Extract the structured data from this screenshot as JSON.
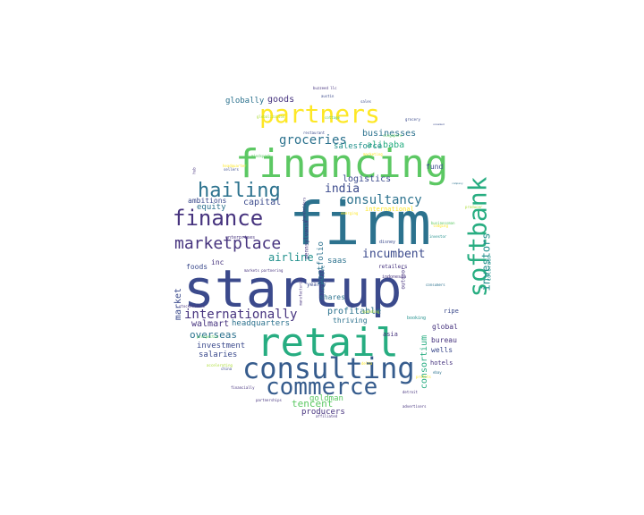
{
  "colors": {
    "navy": "#3b4a8c",
    "indigo": "#46337e",
    "blue": "#365c8d",
    "steel": "#2c728e",
    "teal": "#21908c",
    "green": "#27ad81",
    "lime": "#5cc863",
    "yellowgreen": "#aadc32",
    "yellow": "#fde725",
    "purple": "#440154"
  },
  "words": [
    {
      "text": "startup",
      "color": "navy"
    },
    {
      "text": "firm",
      "color": "steel"
    },
    {
      "text": "financing",
      "color": "lime"
    },
    {
      "text": "retail",
      "color": "green"
    },
    {
      "text": "partners",
      "color": "yellow"
    },
    {
      "text": "consulting",
      "color": "blue"
    },
    {
      "text": "commerce",
      "color": "blue"
    },
    {
      "text": "finance",
      "color": "indigo"
    },
    {
      "text": "softbank",
      "color": "green"
    },
    {
      "text": "hailing",
      "color": "steel"
    },
    {
      "text": "marketplace",
      "color": "indigo"
    },
    {
      "text": "internationally",
      "color": "indigo"
    },
    {
      "text": "groceries",
      "color": "steel"
    },
    {
      "text": "consultancy",
      "color": "steel"
    },
    {
      "text": "incumbent",
      "color": "navy"
    },
    {
      "text": "india",
      "color": "navy"
    },
    {
      "text": "airline",
      "color": "teal"
    },
    {
      "text": "investors",
      "color": "teal"
    },
    {
      "text": "overseas",
      "color": "steel"
    },
    {
      "text": "tencent",
      "color": "lime"
    },
    {
      "text": "businesses",
      "color": "steel"
    },
    {
      "text": "alibaba",
      "color": "green"
    },
    {
      "text": "logistics",
      "color": "navy"
    },
    {
      "text": "capital",
      "color": "navy"
    },
    {
      "text": "portfolio",
      "color": "steel"
    },
    {
      "text": "consortium",
      "color": "green"
    },
    {
      "text": "profitable",
      "color": "steel"
    },
    {
      "text": "walmart",
      "color": "indigo"
    },
    {
      "text": "headquarters",
      "color": "steel"
    },
    {
      "text": "investment",
      "color": "navy"
    },
    {
      "text": "salaries",
      "color": "navy"
    },
    {
      "text": "producers",
      "color": "indigo"
    },
    {
      "text": "goldman",
      "color": "lime"
    },
    {
      "text": "saas",
      "color": "steel"
    },
    {
      "text": "market",
      "color": "navy"
    },
    {
      "text": "equity",
      "color": "steel"
    },
    {
      "text": "globally",
      "color": "steel"
    },
    {
      "text": "goods",
      "color": "indigo"
    },
    {
      "text": "salesforce",
      "color": "teal"
    },
    {
      "text": "ambitions",
      "color": "navy"
    },
    {
      "text": "inc",
      "color": "indigo"
    },
    {
      "text": "foods",
      "color": "navy"
    },
    {
      "text": "fund",
      "color": "navy"
    },
    {
      "text": "thriving",
      "color": "steel"
    },
    {
      "text": "shares",
      "color": "steel"
    },
    {
      "text": "global",
      "color": "indigo"
    },
    {
      "text": "bureau",
      "color": "indigo"
    },
    {
      "text": "wells",
      "color": "navy"
    },
    {
      "text": "asia",
      "color": "indigo"
    },
    {
      "text": "ripe",
      "color": "navy"
    },
    {
      "text": "hotels",
      "color": "indigo"
    },
    {
      "text": "yearly",
      "color": "navy"
    },
    {
      "text": "lucrative",
      "color": "steel"
    },
    {
      "text": "retailers",
      "color": "indigo"
    },
    {
      "text": "outdoor",
      "color": "indigo"
    },
    {
      "text": "pennsylvania",
      "color": "indigo"
    },
    {
      "text": "colorado",
      "color": "teal"
    },
    {
      "text": "disney",
      "color": "navy"
    },
    {
      "text": "booking",
      "color": "teal"
    },
    {
      "text": "indonesia",
      "color": "indigo"
    },
    {
      "text": "international",
      "color": "yellow"
    },
    {
      "text": "enterprises",
      "color": "indigo"
    },
    {
      "text": "shareholders",
      "color": "indigo"
    },
    {
      "text": "manufacturing",
      "color": "indigo"
    },
    {
      "text": "brazil",
      "color": "navy"
    },
    {
      "text": "grocery",
      "color": "navy"
    },
    {
      "text": "restaurant",
      "color": "navy"
    },
    {
      "text": "austin",
      "color": "navy"
    },
    {
      "text": "sales",
      "color": "navy"
    },
    {
      "text": "company",
      "color": "steel"
    },
    {
      "text": "unnamed",
      "color": "navy"
    },
    {
      "text": "sellers",
      "color": "navy"
    },
    {
      "text": "hub",
      "color": "indigo"
    },
    {
      "text": "china",
      "color": "navy"
    },
    {
      "text": "financially",
      "color": "indigo"
    },
    {
      "text": "partnerships",
      "color": "indigo"
    },
    {
      "text": "advertisers",
      "color": "indigo"
    },
    {
      "text": "affiliated",
      "color": "indigo"
    },
    {
      "text": "detroit",
      "color": "indigo"
    },
    {
      "text": "ebay",
      "color": "steel"
    },
    {
      "text": "accelerating",
      "color": "yellowgreen"
    },
    {
      "text": "prospectus",
      "color": "lime"
    },
    {
      "text": "headquarter",
      "color": "yellow"
    },
    {
      "text": "cottage",
      "color": "lime"
    },
    {
      "text": "investor",
      "color": "teal"
    },
    {
      "text": "producer",
      "color": "yellowgreen"
    },
    {
      "text": "marketing",
      "color": "yellow"
    },
    {
      "text": "mindspark",
      "color": "lime"
    },
    {
      "text": "profits",
      "color": "yellow"
    },
    {
      "text": "spending",
      "color": "yellowgreen"
    },
    {
      "text": "markets partnering",
      "color": "indigo"
    },
    {
      "text": "singapore",
      "color": "lime"
    },
    {
      "text": "delta",
      "color": "yellow"
    },
    {
      "text": "lodging",
      "color": "yellow"
    },
    {
      "text": "businessman",
      "color": "lime"
    },
    {
      "text": "stockholders",
      "color": "indigo"
    },
    {
      "text": "consumers",
      "color": "steel"
    },
    {
      "text": "emerging",
      "color": "yellow"
    },
    {
      "text": "globalization",
      "color": "yellowgreen"
    },
    {
      "text": "buzzeed llc",
      "color": "indigo"
    }
  ]
}
